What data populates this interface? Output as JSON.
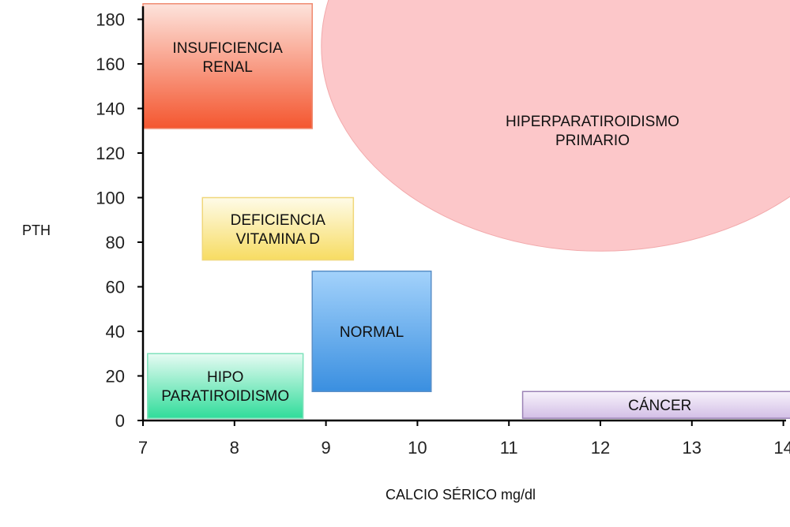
{
  "chart_data": {
    "type": "diagram",
    "xlabel": "CALCIO SÉRICO mg/dl",
    "ylabel": "PTH",
    "xlim": [
      7,
      14.2
    ],
    "ylim": [
      0,
      185
    ],
    "x_ticks": [
      7,
      8,
      9,
      10,
      11,
      12,
      13,
      14
    ],
    "y_ticks": [
      0,
      20,
      40,
      60,
      80,
      100,
      120,
      140,
      160,
      180
    ],
    "regions": [
      {
        "id": "insuficiencia-renal",
        "shape": "rect",
        "label": [
          "INSUFICIENCIA",
          "RENAL"
        ],
        "x": [
          7,
          8.85
        ],
        "y": [
          131,
          187
        ],
        "color_top": "#fde3dc",
        "color_bottom": "#f4562f",
        "stroke": "#f08a70"
      },
      {
        "id": "deficiencia-vitamina-d",
        "shape": "rect",
        "label": [
          "DEFICIENCIA",
          "VITAMINA D"
        ],
        "x": [
          7.65,
          9.3
        ],
        "y": [
          72,
          100
        ],
        "color_top": "#fefbe8",
        "color_bottom": "#f7dc62",
        "stroke": "#f0d77a"
      },
      {
        "id": "normal",
        "shape": "rect",
        "label": [
          "NORMAL"
        ],
        "x": [
          8.85,
          10.15
        ],
        "y": [
          13,
          67
        ],
        "color_top": "#a3d2fb",
        "color_bottom": "#3a8fe0",
        "stroke": "#5a8fc8"
      },
      {
        "id": "hipoparatiroidismo",
        "shape": "rect",
        "label": [
          "HIPO",
          "PARATIROIDISMO"
        ],
        "x": [
          7.05,
          8.75
        ],
        "y": [
          1,
          30
        ],
        "color_top": "#e6fbf3",
        "color_bottom": "#30dc9a",
        "stroke": "#7fe2bb"
      },
      {
        "id": "cancer",
        "shape": "rect",
        "label": [
          "CÁNCER"
        ],
        "x": [
          11.15,
          14.15
        ],
        "y": [
          1,
          13
        ],
        "color_top": "#f7f2fb",
        "color_bottom": "#d3bfe6",
        "stroke": "#9b82b5"
      },
      {
        "id": "hiperparatiroidismo-primario",
        "shape": "circle",
        "label": [
          "HIPERPARATIROIDISMO",
          "PRIMARIO"
        ],
        "cx": 12,
        "cy": 168,
        "rx": 3.05,
        "ry": 92,
        "fill": "#fcc7c9",
        "stroke": "#f2a9ab"
      }
    ]
  }
}
